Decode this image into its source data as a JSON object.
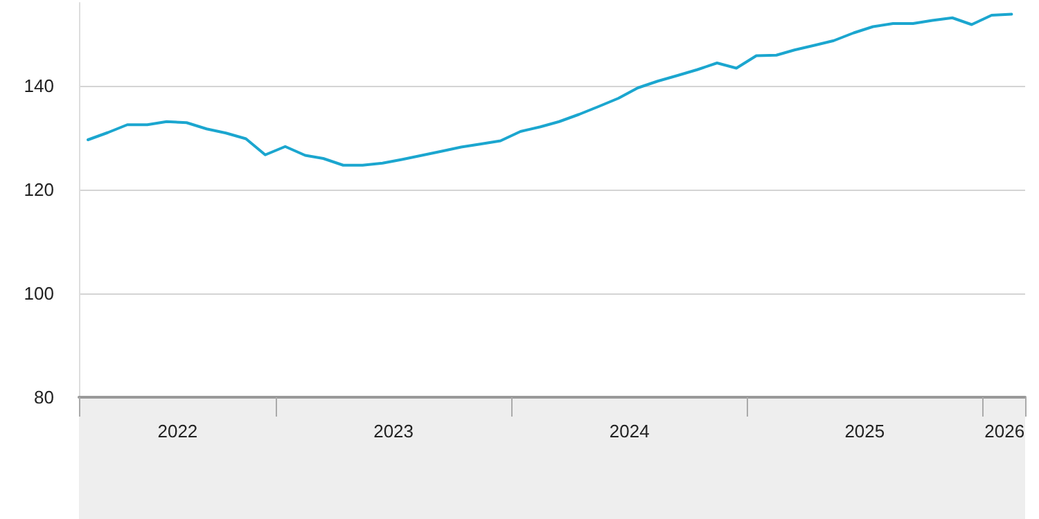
{
  "chart_data": {
    "type": "line",
    "x": [
      "2022-03-15",
      "2022-04-15",
      "2022-05-15",
      "2022-06-15",
      "2022-07-15",
      "2022-08-15",
      "2022-09-15",
      "2022-10-15",
      "2022-11-15",
      "2022-12-15",
      "2023-01-15",
      "2023-02-15",
      "2023-03-15",
      "2023-04-15",
      "2023-05-15",
      "2023-06-15",
      "2023-07-15",
      "2023-08-15",
      "2023-09-15",
      "2023-10-15",
      "2023-11-15",
      "2023-12-15",
      "2024-01-15",
      "2024-02-15",
      "2024-03-15",
      "2024-04-15",
      "2024-05-15",
      "2024-06-15",
      "2024-07-15",
      "2024-08-15",
      "2024-09-15",
      "2024-10-15",
      "2024-11-15",
      "2024-12-15",
      "2025-01-15",
      "2025-02-15",
      "2025-03-15",
      "2025-04-15",
      "2025-05-15",
      "2025-06-15",
      "2025-07-15",
      "2025-08-15",
      "2025-09-15",
      "2025-10-15",
      "2025-11-15",
      "2025-12-15",
      "2026-01-15",
      "2026-02-15"
    ],
    "series": [
      {
        "color": "#1ba6cf",
        "values": [
          129.6,
          131.0,
          132.5,
          132.5,
          133.1,
          132.9,
          131.7,
          130.9,
          129.8,
          126.7,
          128.3,
          126.6,
          126.0,
          124.7,
          124.7,
          125.1,
          125.8,
          126.6,
          127.4,
          128.2,
          128.8,
          129.4,
          131.2,
          132.1,
          133.1,
          134.5,
          136.0,
          137.6,
          139.6,
          140.9,
          142.0,
          143.1,
          144.4,
          143.4,
          145.8,
          145.9,
          146.9,
          147.8,
          148.7,
          150.2,
          151.4,
          152.0,
          152.0,
          152.6,
          153.1,
          151.8,
          153.6,
          153.8
        ]
      }
    ],
    "xlim": [
      "2022-03-01",
      "2026-03-08"
    ],
    "xticks": [
      {
        "value": "2022-03-01",
        "label": null
      },
      {
        "value": "2022-08-01",
        "label": "2022"
      },
      {
        "value": "2023-01-01",
        "label": null
      },
      {
        "value": "2023-07-02",
        "label": "2023"
      },
      {
        "value": "2024-01-01",
        "label": null
      },
      {
        "value": "2024-07-02",
        "label": "2024"
      },
      {
        "value": "2025-01-01",
        "label": null
      },
      {
        "value": "2025-07-02",
        "label": "2025"
      },
      {
        "value": "2026-01-01",
        "label": null
      },
      {
        "value": "2026-02-04",
        "label": "2026"
      },
      {
        "value": "2026-03-08",
        "label": null
      }
    ],
    "ylim": [
      80,
      156
    ],
    "yticks": [
      80,
      100,
      120,
      140
    ],
    "grid": "y",
    "marker": "none",
    "line_style": "solid"
  }
}
